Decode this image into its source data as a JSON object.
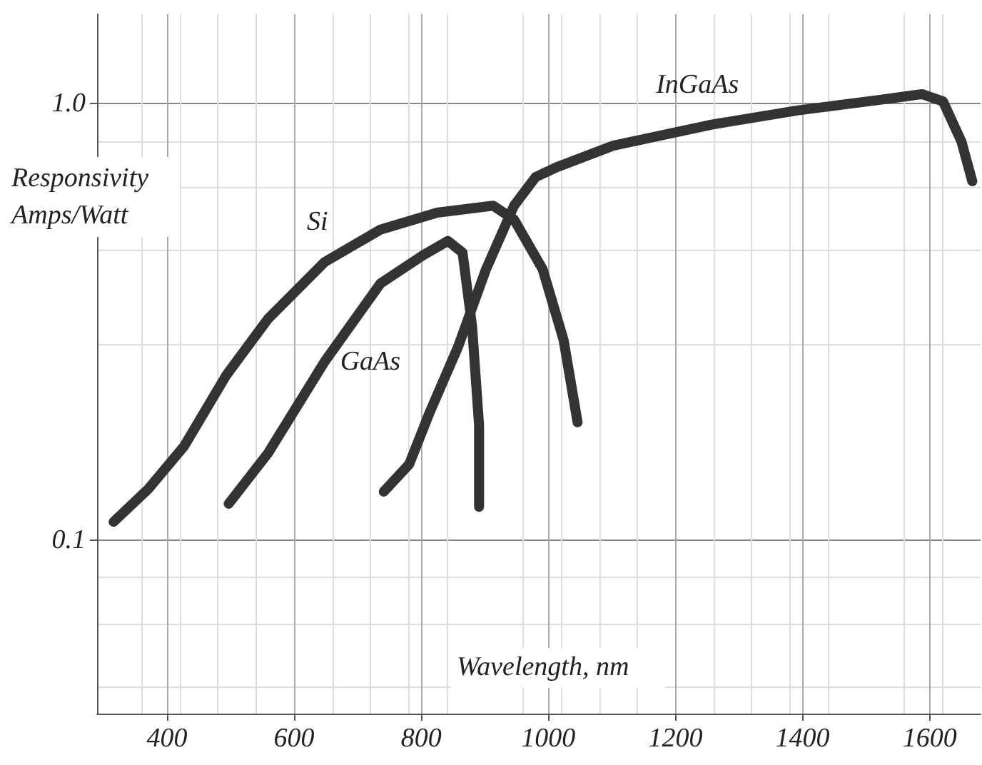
{
  "chart_data": {
    "type": "line",
    "xlabel": "Wavelength, nm",
    "ylabel": "Responsivity\nAmps/Watt",
    "log": "y",
    "grid": true,
    "line_style": "solid",
    "legend": false,
    "xlim": [
      290,
      1680
    ],
    "xticks": [
      400,
      600,
      800,
      1000,
      1200,
      1400,
      1600
    ],
    "ylim": [
      0.04,
      1.6
    ],
    "yticks": [
      0.1,
      {
        "value": 1,
        "label": "1.0"
      }
    ],
    "series": [
      {
        "name": "Si",
        "color": "#333333",
        "x": [
          316,
          371,
          427,
          493,
          559,
          648,
          736,
          825,
          913,
          946,
          991,
          1024,
          1046
        ],
        "values": [
          0.11,
          0.131,
          0.164,
          0.238,
          0.321,
          0.433,
          0.514,
          0.562,
          0.583,
          0.542,
          0.417,
          0.287,
          0.186
        ]
      },
      {
        "name": "GaAs",
        "color": "#333333",
        "x": [
          497,
          559,
          648,
          736,
          803,
          842,
          865,
          880,
          891,
          891
        ],
        "values": [
          0.121,
          0.158,
          0.256,
          0.387,
          0.449,
          0.484,
          0.455,
          0.309,
          0.183,
          0.119
        ]
      },
      {
        "name": "InGaAs",
        "color": "#333333",
        "x": [
          741,
          781,
          814,
          858,
          902,
          946,
          980,
          1013,
          1102,
          1257,
          1391,
          1524,
          1588,
          1621,
          1650,
          1667
        ],
        "values": [
          0.129,
          0.149,
          0.197,
          0.277,
          0.417,
          0.583,
          0.678,
          0.714,
          0.8,
          0.894,
          0.963,
          1.02,
          1.05,
          1.01,
          0.817,
          0.663
        ]
      }
    ]
  }
}
